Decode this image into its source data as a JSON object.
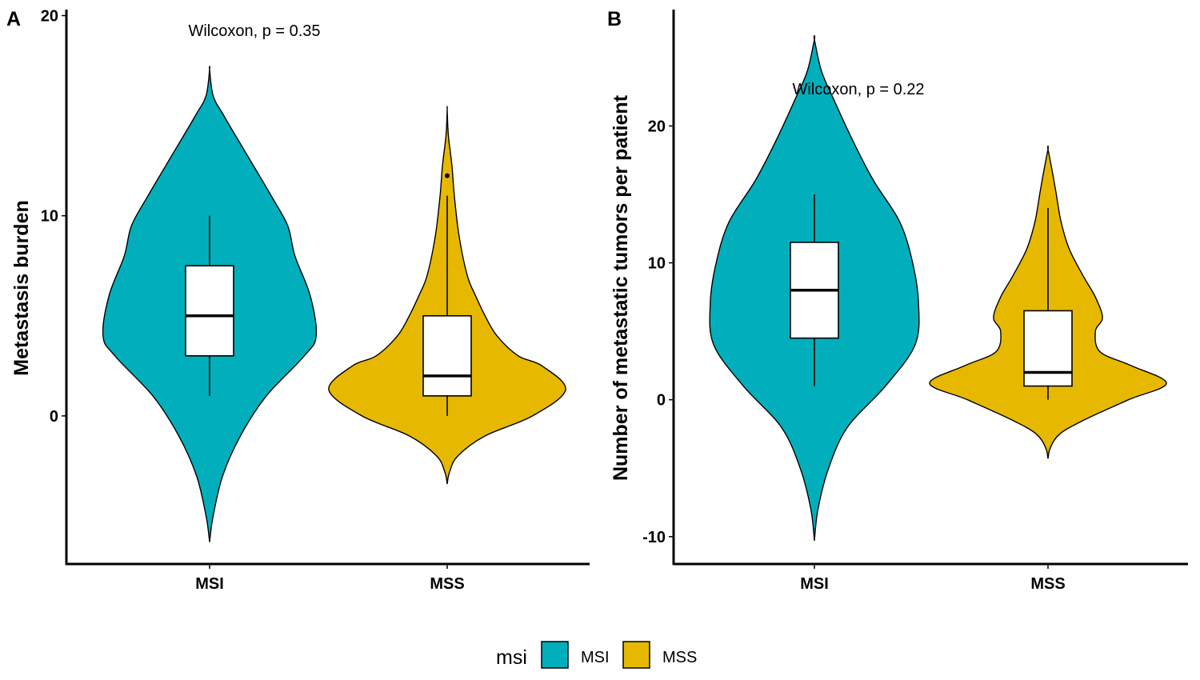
{
  "chart_data": [
    {
      "type": "violin",
      "panel": "A",
      "annotation": "Wilcoxon, p = 0.35",
      "ylabel": "Metastasis burden",
      "xlabel": "",
      "ylim": [
        -7.4,
        20.3
      ],
      "yticks": [
        0,
        10,
        20
      ],
      "categories": [
        "MSI",
        "MSS"
      ],
      "series": [
        {
          "name": "MSI",
          "color": "#00AFBB",
          "violin_range": [
            -6.3,
            17.3
          ],
          "violin_profile": [
            [
              -6.3,
              0
            ],
            [
              -5,
              0.03
            ],
            [
              -3,
              0.11
            ],
            [
              -1,
              0.26
            ],
            [
              1,
              0.48
            ],
            [
              3,
              0.8
            ],
            [
              4,
              0.9
            ],
            [
              6,
              0.85
            ],
            [
              8,
              0.72
            ],
            [
              9.5,
              0.66
            ],
            [
              11,
              0.52
            ],
            [
              13,
              0.32
            ],
            [
              15,
              0.12
            ],
            [
              16,
              0.03
            ],
            [
              17.3,
              0
            ]
          ],
          "box": {
            "lower_whisker": 1,
            "q1": 3,
            "median": 5,
            "q3": 7.5,
            "upper_whisker": 10
          },
          "outliers": []
        },
        {
          "name": "MSS",
          "color": "#E7B800",
          "violin_range": [
            -3.4,
            15.3
          ],
          "violin_profile": [
            [
              -3.4,
              0
            ],
            [
              -2.8,
              0.02
            ],
            [
              -2,
              0.09
            ],
            [
              -1,
              0.32
            ],
            [
              0,
              0.72
            ],
            [
              1.3,
              1.0
            ],
            [
              2.5,
              0.8
            ],
            [
              3,
              0.6
            ],
            [
              4,
              0.42
            ],
            [
              5,
              0.32
            ],
            [
              6,
              0.24
            ],
            [
              7,
              0.17
            ],
            [
              9,
              0.1
            ],
            [
              11,
              0.06
            ],
            [
              12.5,
              0.04
            ],
            [
              14,
              0.01
            ],
            [
              15.3,
              0
            ]
          ],
          "box": {
            "lower_whisker": 0,
            "q1": 1,
            "median": 2,
            "q3": 5,
            "upper_whisker": 11
          },
          "outliers": [
            12
          ]
        }
      ]
    },
    {
      "type": "violin",
      "panel": "B",
      "annotation": "Wilcoxon, p = 0.22",
      "ylabel": "Number of metastatic tumors per patient",
      "xlabel": "",
      "ylim": [
        -12.0,
        28.5
      ],
      "yticks": [
        -10,
        0,
        10,
        20
      ],
      "categories": [
        "MSI",
        "MSS"
      ],
      "series": [
        {
          "name": "MSI",
          "color": "#00AFBB",
          "violin_range": [
            -10.3,
            26.3
          ],
          "violin_profile": [
            [
              -10.3,
              0
            ],
            [
              -8,
              0.03
            ],
            [
              -5,
              0.12
            ],
            [
              -2,
              0.28
            ],
            [
              1,
              0.6
            ],
            [
              4,
              0.85
            ],
            [
              7,
              0.88
            ],
            [
              10,
              0.83
            ],
            [
              13,
              0.72
            ],
            [
              16,
              0.5
            ],
            [
              19,
              0.32
            ],
            [
              22,
              0.16
            ],
            [
              24,
              0.06
            ],
            [
              26.3,
              0
            ]
          ],
          "box": {
            "lower_whisker": 1,
            "q1": 4.5,
            "median": 8,
            "q3": 11.5,
            "upper_whisker": 15
          },
          "outliers": []
        },
        {
          "name": "MSS",
          "color": "#E7B800",
          "violin_range": [
            -4.3,
            18.3
          ],
          "violin_profile": [
            [
              -4.3,
              0
            ],
            [
              -3.5,
              0.02
            ],
            [
              -2.5,
              0.1
            ],
            [
              -1.5,
              0.3
            ],
            [
              0,
              0.68
            ],
            [
              1.2,
              1.0
            ],
            [
              2.5,
              0.7
            ],
            [
              3.5,
              0.44
            ],
            [
              5,
              0.4
            ],
            [
              6,
              0.46
            ],
            [
              7.5,
              0.4
            ],
            [
              9,
              0.3
            ],
            [
              11,
              0.18
            ],
            [
              13,
              0.11
            ],
            [
              15,
              0.07
            ],
            [
              16.5,
              0.04
            ],
            [
              18.3,
              0
            ]
          ],
          "box": {
            "lower_whisker": 0,
            "q1": 1,
            "median": 2,
            "q3": 6.5,
            "upper_whisker": 14
          },
          "outliers": []
        }
      ]
    }
  ],
  "legend": {
    "title": "msi",
    "items": [
      {
        "label": "MSI",
        "color": "#00AFBB"
      },
      {
        "label": "MSS",
        "color": "#E7B800"
      }
    ]
  }
}
